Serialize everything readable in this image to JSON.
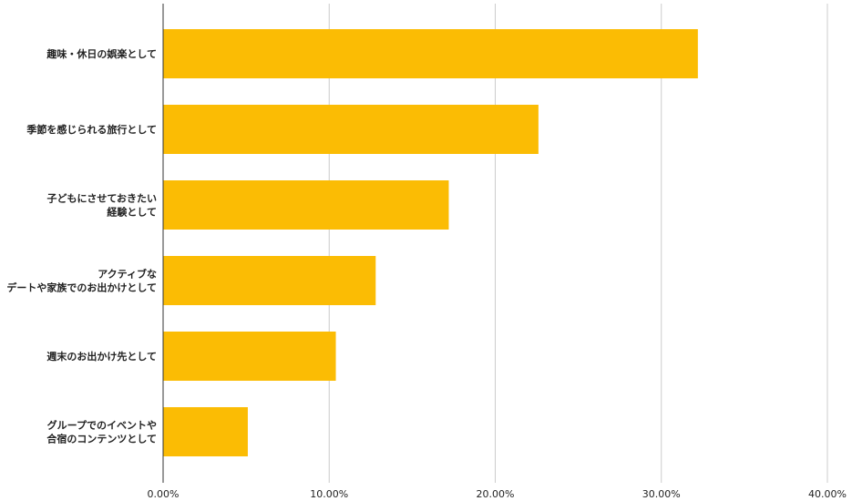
{
  "chart_data": {
    "type": "bar",
    "orientation": "horizontal",
    "categories": [
      [
        "趣味・休日の娯楽として"
      ],
      [
        "季節を感じられる旅行として"
      ],
      [
        "子どもにさせておきたい",
        "経験として"
      ],
      [
        "アクティブな",
        "デートや家族でのお出かけとして"
      ],
      [
        "週末のお出かけ先として"
      ],
      [
        "グループでのイベントや",
        "合宿のコンテンツとして"
      ]
    ],
    "values": [
      32.2,
      22.6,
      17.2,
      12.8,
      10.4,
      5.1
    ],
    "xlim": [
      0,
      40
    ],
    "xticks": [
      "0.00%",
      "10.00%",
      "20.00%",
      "30.00%",
      "40.00%"
    ],
    "grid": true,
    "legend": "none",
    "colors": {
      "bar": "#FBBC04",
      "grid": "#CCCCCC",
      "axis": "#333333"
    }
  }
}
